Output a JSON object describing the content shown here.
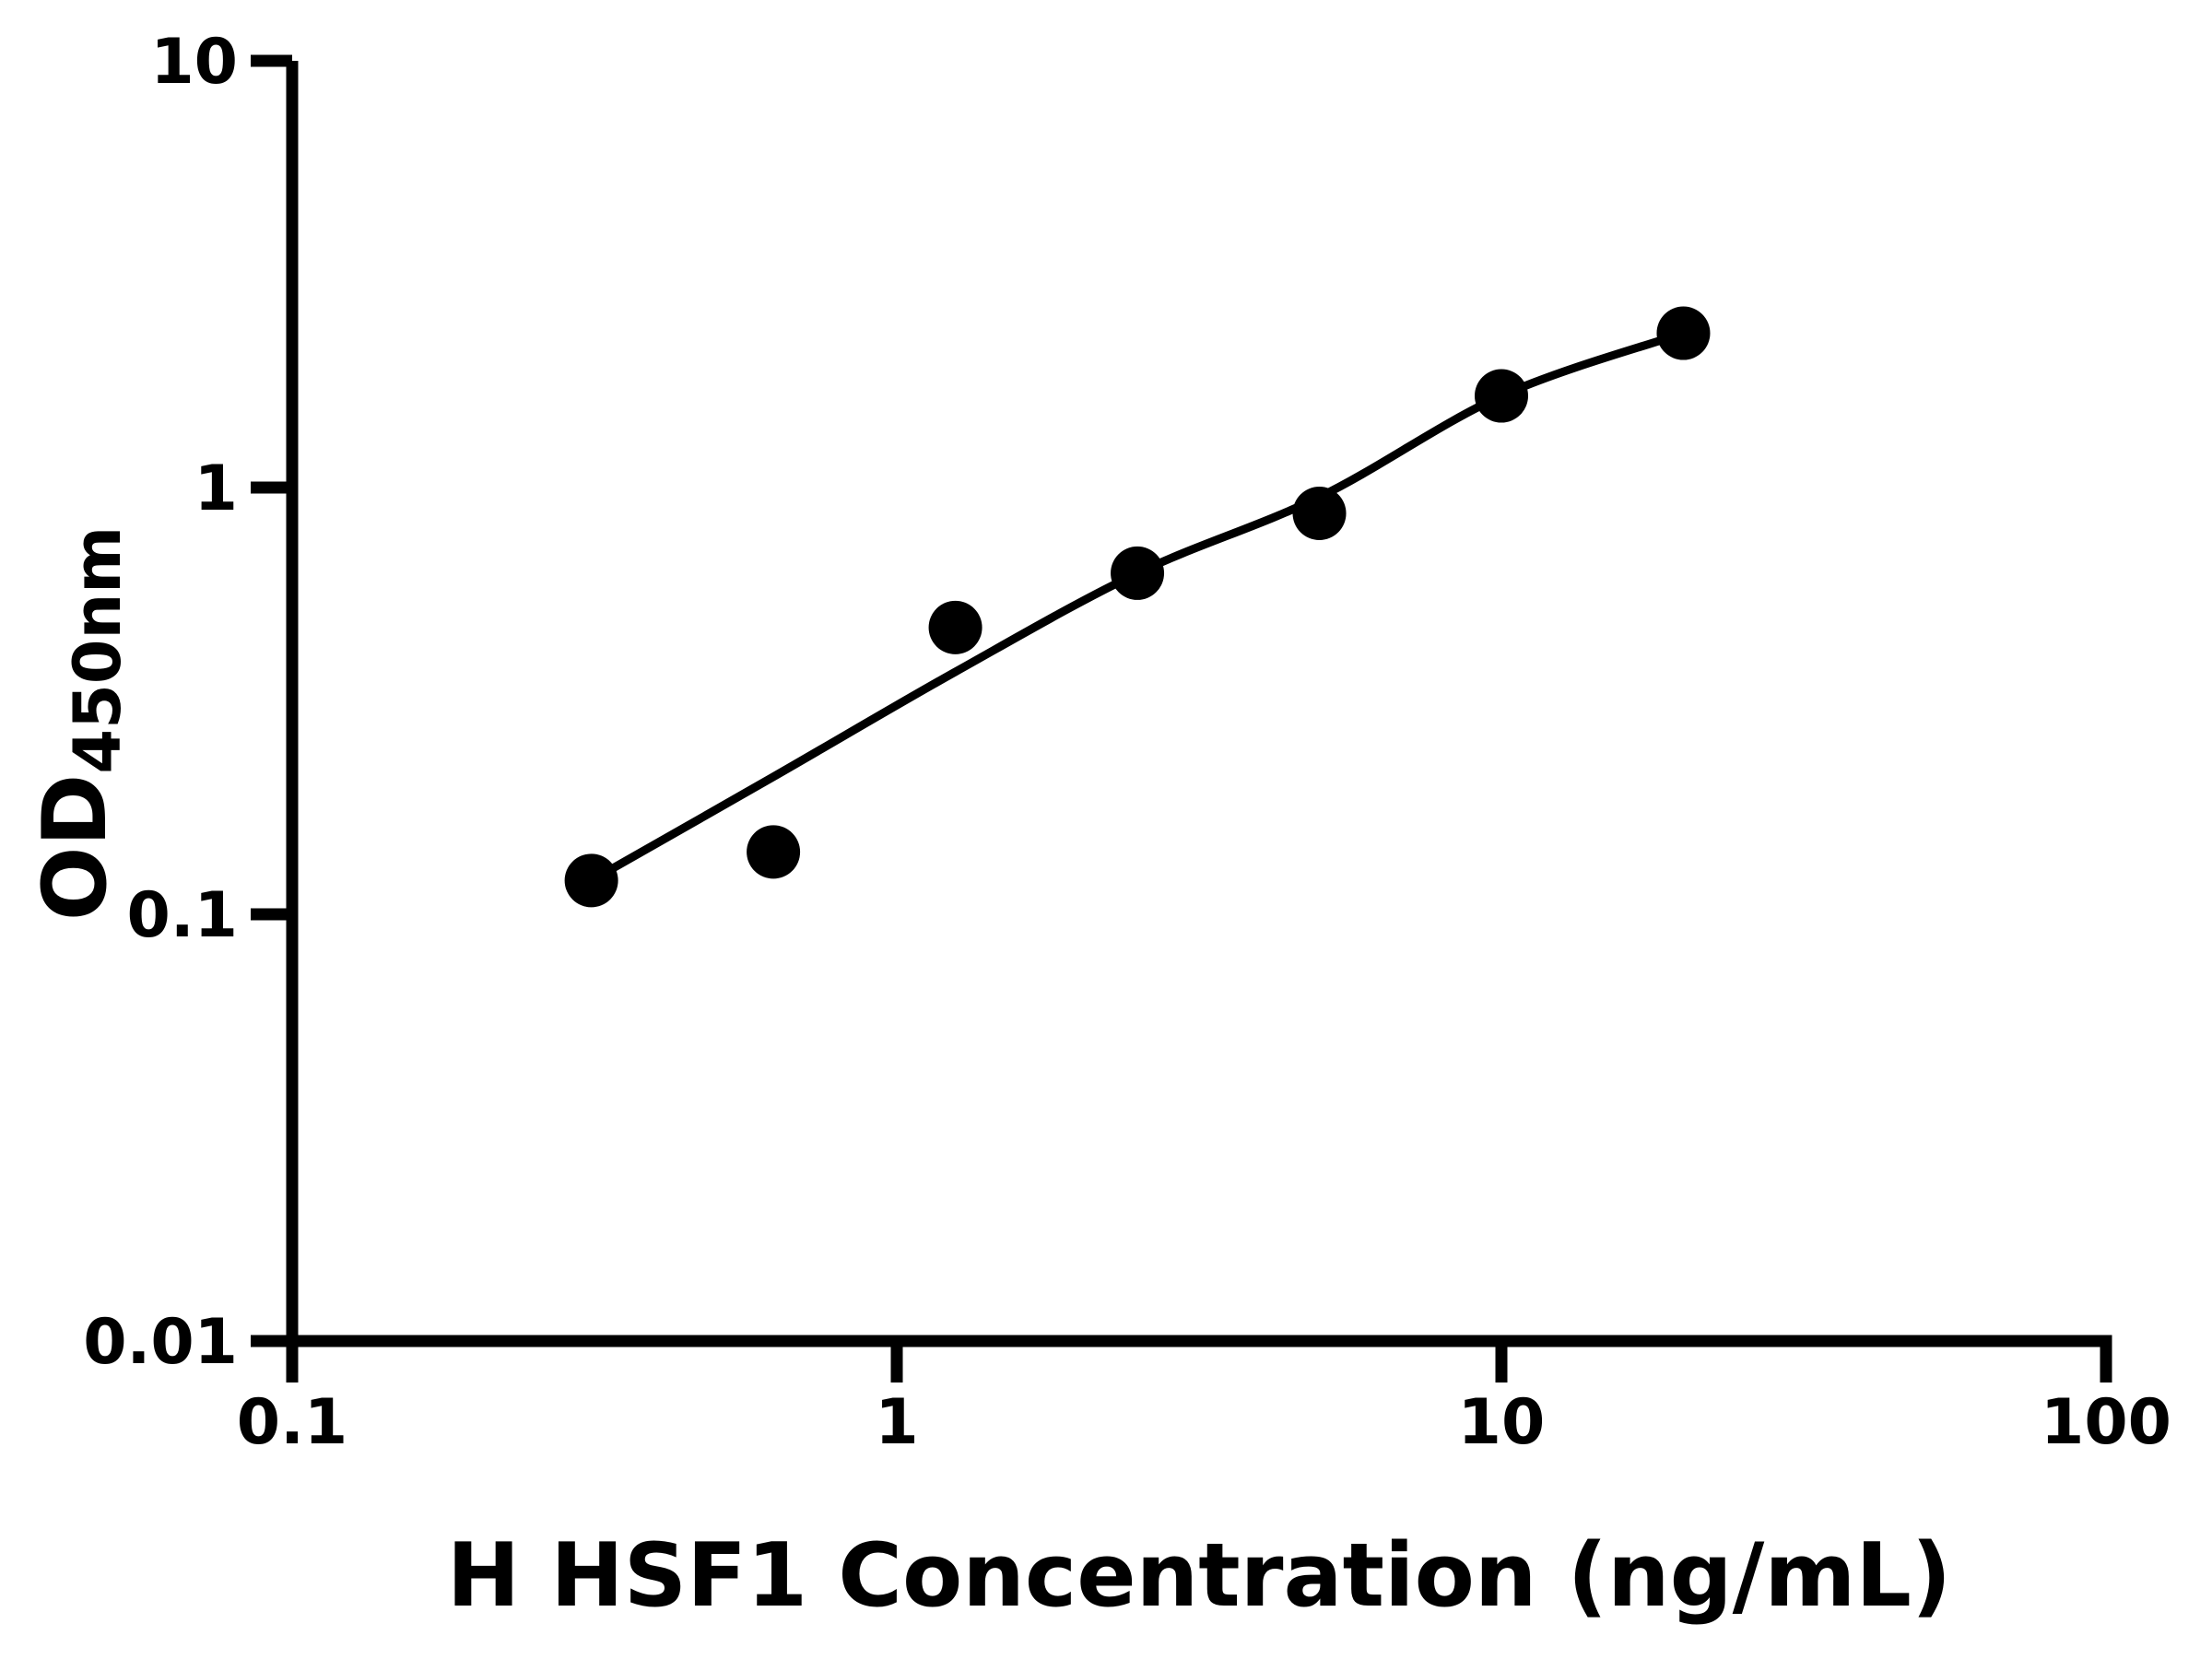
{
  "chart_data": {
    "type": "scatter",
    "title": "",
    "xlabel": "H HSF1 Concentration (ng/mL)",
    "ylabel_main": "OD",
    "ylabel_sub": "450nm",
    "x_scale": "log",
    "y_scale": "log",
    "xlim": [
      0.1,
      100
    ],
    "ylim": [
      0.01,
      10
    ],
    "x_ticks": [
      {
        "value": 0.1,
        "label": "0.1"
      },
      {
        "value": 1,
        "label": "1"
      },
      {
        "value": 10,
        "label": "10"
      },
      {
        "value": 100,
        "label": "100"
      }
    ],
    "y_ticks": [
      {
        "value": 10,
        "label": "10"
      },
      {
        "value": 1,
        "label": "1"
      },
      {
        "value": 0.1,
        "label": "0.1"
      },
      {
        "value": 0.01,
        "label": "0.01"
      }
    ],
    "grid": "off",
    "legend": "none",
    "points": [
      {
        "x": 0.3125,
        "y": 0.12
      },
      {
        "x": 0.625,
        "y": 0.14
      },
      {
        "x": 1.25,
        "y": 0.47
      },
      {
        "x": 2.5,
        "y": 0.63
      },
      {
        "x": 5,
        "y": 0.87
      },
      {
        "x": 10,
        "y": 1.64
      },
      {
        "x": 20,
        "y": 2.3
      }
    ],
    "fit_curve": [
      {
        "x": 0.3125,
        "y": 0.12
      },
      {
        "x": 0.625,
        "y": 0.21
      },
      {
        "x": 1.25,
        "y": 0.37
      },
      {
        "x": 2.5,
        "y": 0.63
      },
      {
        "x": 5,
        "y": 0.95
      },
      {
        "x": 10,
        "y": 1.64
      },
      {
        "x": 20,
        "y": 2.3
      }
    ],
    "colors": {
      "marker": "#000000",
      "line": "#000000",
      "axis": "#000000",
      "background": "#ffffff"
    }
  }
}
